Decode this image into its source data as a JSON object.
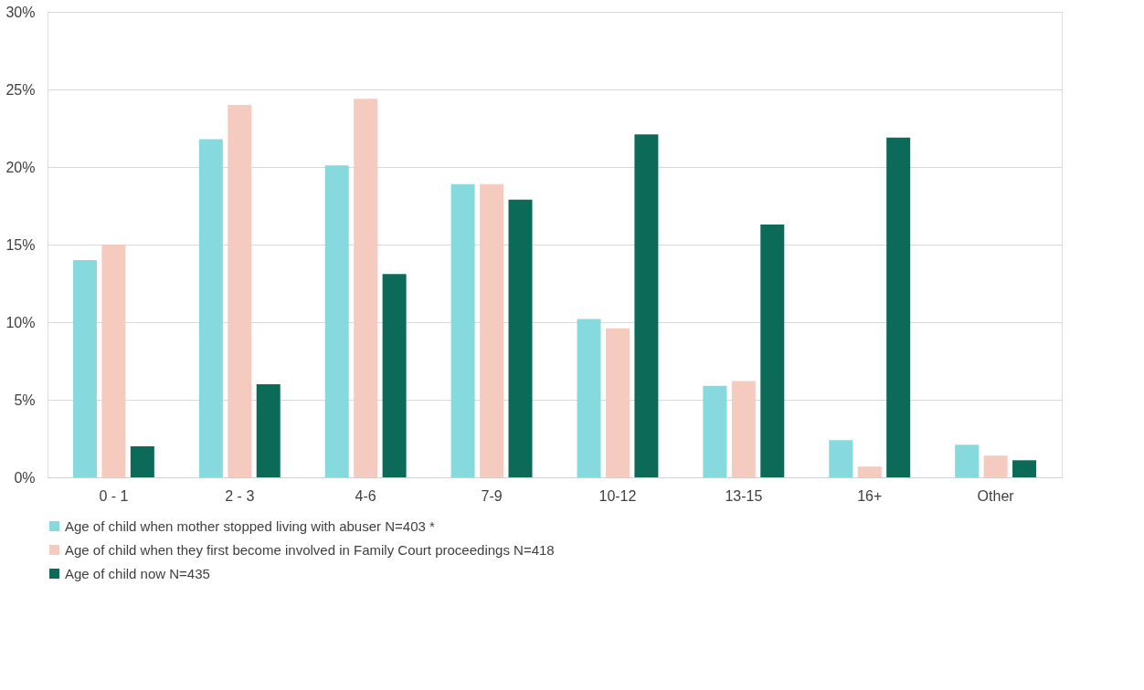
{
  "chart_data": {
    "type": "bar",
    "categories": [
      "0 - 1",
      "2 - 3",
      "4-6",
      "7-9",
      "10-12",
      "13-15",
      "16+",
      "Other"
    ],
    "series": [
      {
        "name": "Age of child when mother stopped living with abuser N=403 *",
        "color": "#86d9dc",
        "values": [
          14.0,
          21.8,
          20.1,
          18.9,
          10.2,
          5.9,
          2.4,
          2.1
        ]
      },
      {
        "name": "Age of child when they first become involved in Family Court proceedings  N=418",
        "color": "#f5cbc0",
        "values": [
          15.0,
          24.0,
          24.4,
          18.9,
          9.6,
          6.2,
          0.7,
          1.4
        ]
      },
      {
        "name": "Age of child now N=435",
        "color": "#0b6b58",
        "values": [
          2.0,
          6.0,
          13.1,
          17.9,
          22.1,
          16.3,
          21.9,
          1.1
        ]
      }
    ],
    "ylim": [
      0,
      30
    ],
    "yticks": [
      {
        "value": 0,
        "label": "0%"
      },
      {
        "value": 5,
        "label": "5%"
      },
      {
        "value": 10,
        "label": "10%"
      },
      {
        "value": 15,
        "label": "15%"
      },
      {
        "value": 20,
        "label": "20%"
      },
      {
        "value": 25,
        "label": "25%"
      },
      {
        "value": 30,
        "label": "30%"
      }
    ],
    "grid": "y",
    "legend": "bottom"
  }
}
